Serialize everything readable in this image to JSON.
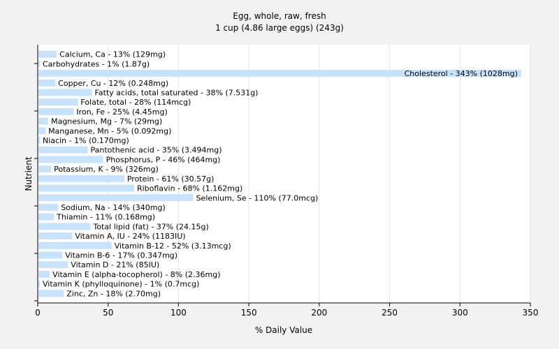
{
  "chart_data": {
    "type": "bar",
    "orientation": "horizontal",
    "title": "Egg, whole, raw, fresh",
    "subtitle": "1 cup (4.86 large eggs) (243g)",
    "xlabel": "% Daily Value",
    "ylabel": "Nutrient",
    "xlim": [
      0,
      350
    ],
    "xticks": [
      0,
      50,
      100,
      150,
      200,
      250,
      300,
      350
    ],
    "grid": true,
    "bar_color": "#c9e2fb",
    "categories": [
      "Calcium, Ca",
      "Carbohydrates",
      "Cholesterol",
      "Copper, Cu",
      "Fatty acids, total saturated",
      "Folate, total",
      "Iron, Fe",
      "Magnesium, Mg",
      "Manganese, Mn",
      "Niacin",
      "Pantothenic acid",
      "Phosphorus, P",
      "Potassium, K",
      "Protein",
      "Riboflavin",
      "Selenium, Se",
      "Sodium, Na",
      "Thiamin",
      "Total lipid (fat)",
      "Vitamin A, IU",
      "Vitamin B-12",
      "Vitamin B-6",
      "Vitamin D",
      "Vitamin E (alpha-tocopherol)",
      "Vitamin K (phylloquinone)",
      "Zinc, Zn"
    ],
    "values": [
      13,
      1,
      343,
      12,
      38,
      28,
      25,
      7,
      5,
      1,
      35,
      46,
      9,
      61,
      68,
      110,
      14,
      11,
      37,
      24,
      52,
      17,
      21,
      8,
      1,
      18
    ],
    "labels": [
      "Calcium, Ca - 13% (129mg)",
      "Carbohydrates - 1% (1.87g)",
      "Cholesterol - 343% (1028mg)",
      "Copper, Cu - 12% (0.248mg)",
      "Fatty acids, total saturated - 38% (7.531g)",
      "Folate, total - 28% (114mcg)",
      "Iron, Fe - 25% (4.45mg)",
      "Magnesium, Mg - 7% (29mg)",
      "Manganese, Mn - 5% (0.092mg)",
      "Niacin - 1% (0.170mg)",
      "Pantothenic acid - 35% (3.494mg)",
      "Phosphorus, P - 46% (464mg)",
      "Potassium, K - 9% (326mg)",
      "Protein - 61% (30.57g)",
      "Riboflavin - 68% (1.162mg)",
      "Selenium, Se - 110% (77.0mcg)",
      "Sodium, Na - 14% (340mg)",
      "Thiamin - 11% (0.168mg)",
      "Total lipid (fat) - 37% (24.15g)",
      "Vitamin A, IU - 24% (1183IU)",
      "Vitamin B-12 - 52% (3.13mcg)",
      "Vitamin B-6 - 17% (0.347mg)",
      "Vitamin D - 21% (85IU)",
      "Vitamin E (alpha-tocopherol) - 8% (2.36mg)",
      "Vitamin K (phylloquinone) - 1% (0.7mcg)",
      "Zinc, Zn - 18% (2.70mg)"
    ]
  }
}
